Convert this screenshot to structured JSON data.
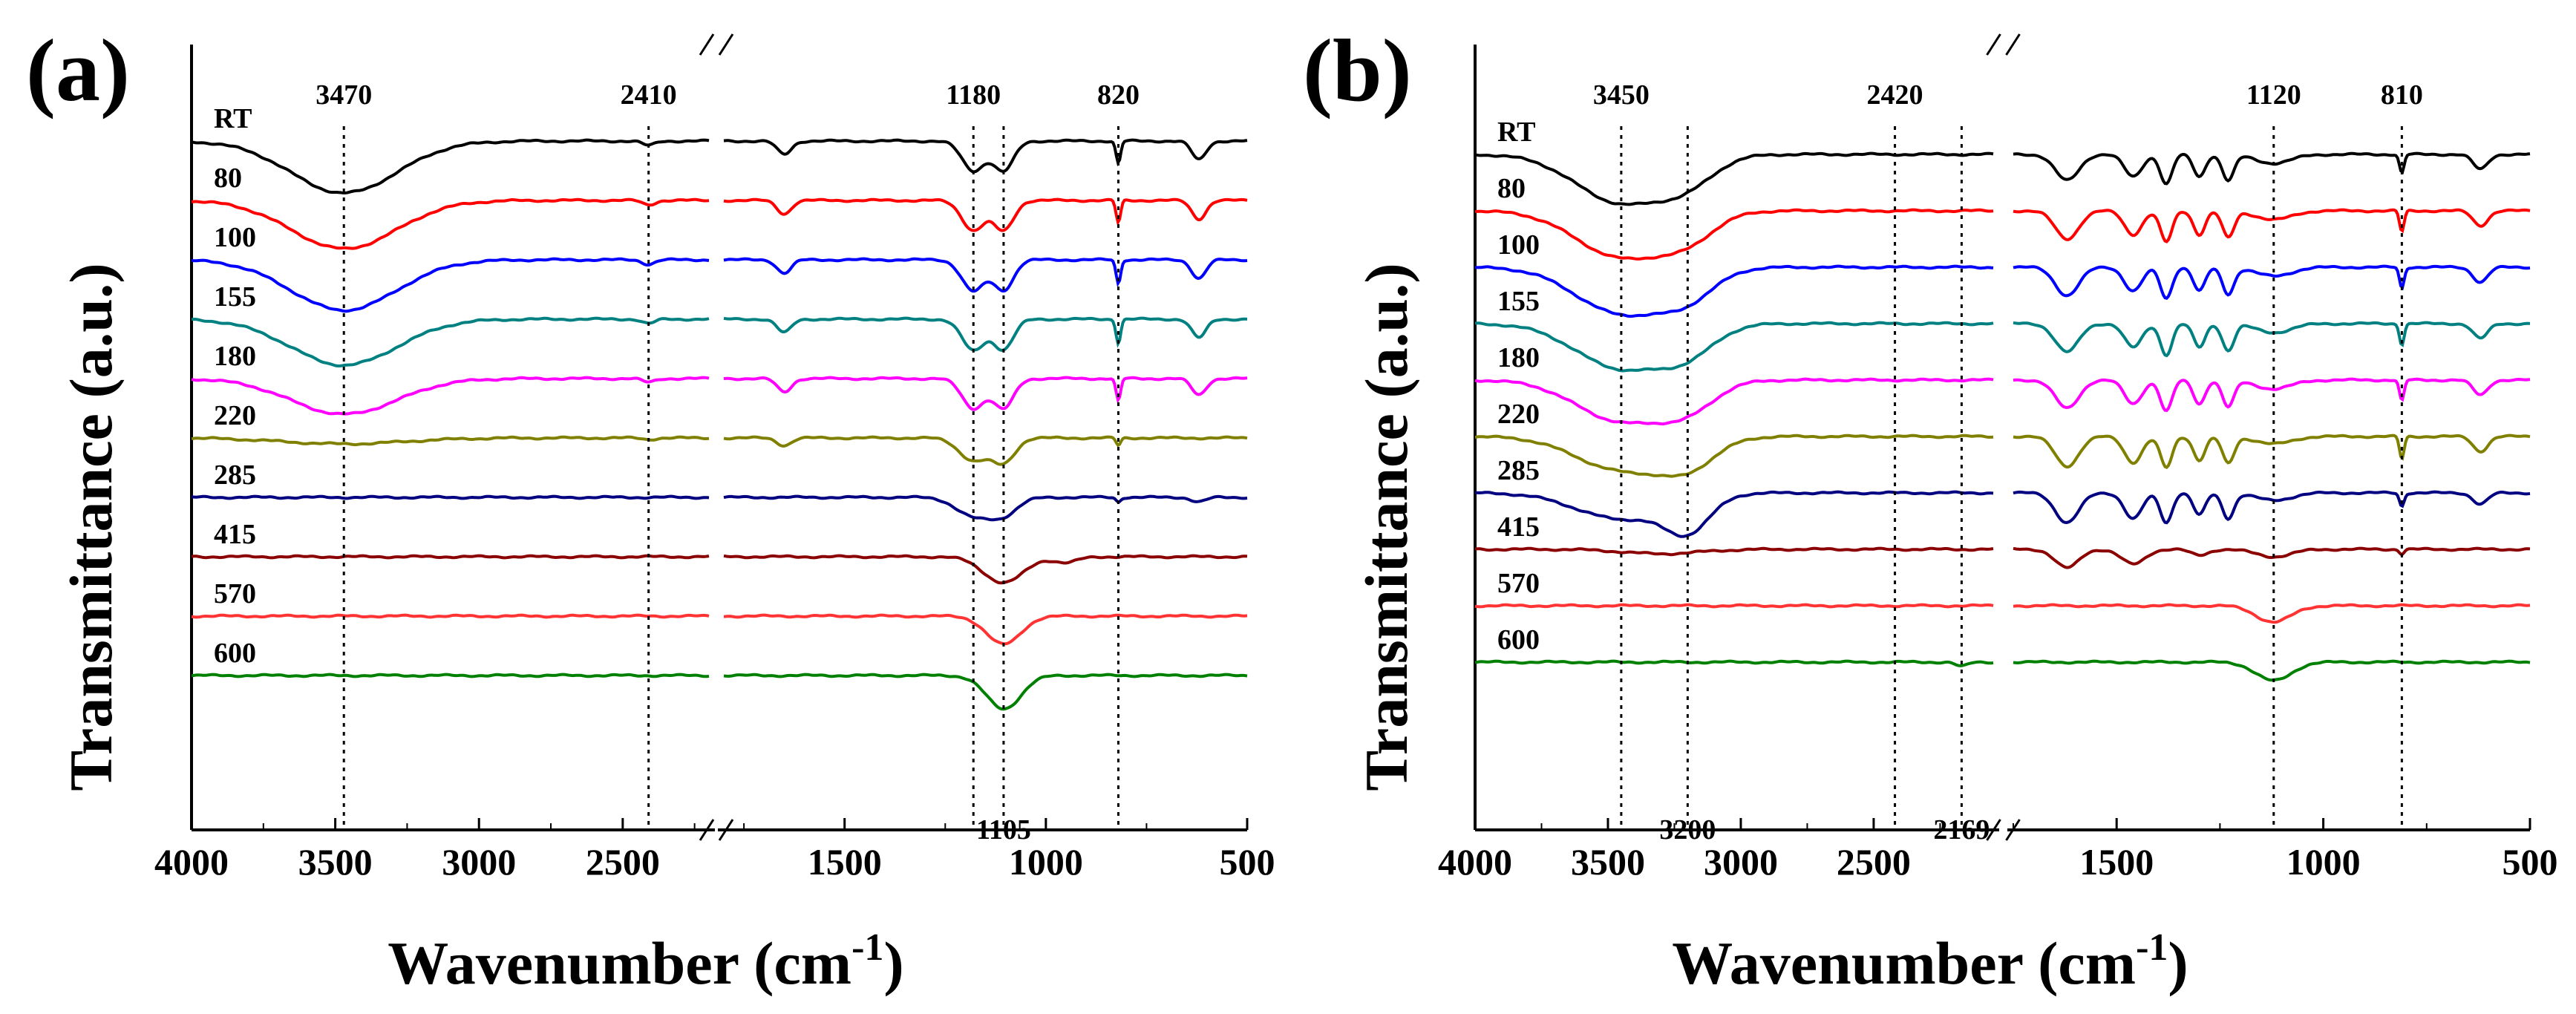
{
  "chart_data": [
    {
      "panel": "(a)",
      "type": "line",
      "ylabel": "Transmittance (a.u.)",
      "xlabel": "Wavenumber (cm",
      "xlabel_sup": "-1",
      "xlabel_close": ")",
      "x_ticks_left": [
        4000,
        3500,
        3000,
        2500
      ],
      "x_ticks_right": [
        1500,
        1000,
        500
      ],
      "x_range_left": [
        4000,
        2200
      ],
      "x_range_right": [
        1800,
        500
      ],
      "peaks": [
        {
          "wavenumber": 3470,
          "label": "3470",
          "position": "top"
        },
        {
          "wavenumber": 2410,
          "label": "2410",
          "position": "top"
        },
        {
          "wavenumber": 1180,
          "label": "1180",
          "position": "top"
        },
        {
          "wavenumber": 1105,
          "label": "1105",
          "position": "bottom"
        },
        {
          "wavenumber": 820,
          "label": "820",
          "position": "top"
        }
      ],
      "series": [
        {
          "name": "RT",
          "color": "#000000",
          "baseline": 0,
          "bands": [
            [
              3470,
              70,
              260
            ],
            [
              2410,
              6,
              30
            ],
            [
              1650,
              18,
              25
            ],
            [
              1180,
              40,
              40
            ],
            [
              1105,
              40,
              35
            ],
            [
              820,
              30,
              8
            ],
            [
              620,
              25,
              25
            ]
          ]
        },
        {
          "name": "80",
          "color": "#ff0000",
          "baseline": 1,
          "bands": [
            [
              3470,
              65,
              260
            ],
            [
              2410,
              6,
              30
            ],
            [
              1650,
              18,
              25
            ],
            [
              1180,
              40,
              40
            ],
            [
              1105,
              40,
              35
            ],
            [
              820,
              30,
              8
            ],
            [
              620,
              25,
              25
            ]
          ]
        },
        {
          "name": "100",
          "color": "#0000ff",
          "baseline": 2,
          "bands": [
            [
              3470,
              68,
              260
            ],
            [
              2410,
              6,
              30
            ],
            [
              1650,
              18,
              25
            ],
            [
              1180,
              42,
              40
            ],
            [
              1105,
              40,
              35
            ],
            [
              820,
              32,
              8
            ],
            [
              620,
              25,
              25
            ]
          ]
        },
        {
          "name": "155",
          "color": "#008080",
          "baseline": 3,
          "bands": [
            [
              3470,
              62,
              260
            ],
            [
              2410,
              6,
              30
            ],
            [
              1650,
              18,
              25
            ],
            [
              1180,
              42,
              40
            ],
            [
              1105,
              40,
              35
            ],
            [
              820,
              32,
              8
            ],
            [
              620,
              25,
              25
            ]
          ]
        },
        {
          "name": "180",
          "color": "#ff00ff",
          "baseline": 4,
          "bands": [
            [
              3470,
              48,
              260
            ],
            [
              2410,
              5,
              30
            ],
            [
              1650,
              18,
              25
            ],
            [
              1180,
              40,
              40
            ],
            [
              1105,
              40,
              35
            ],
            [
              820,
              30,
              8
            ],
            [
              620,
              22,
              25
            ]
          ]
        },
        {
          "name": "220",
          "color": "#808000",
          "baseline": 5,
          "bands": [
            [
              3470,
              8,
              300
            ],
            [
              2410,
              2,
              30
            ],
            [
              1650,
              10,
              25
            ],
            [
              1180,
              30,
              50
            ],
            [
              1105,
              32,
              40
            ],
            [
              820,
              10,
              8
            ]
          ]
        },
        {
          "name": "285",
          "color": "#000080",
          "baseline": 6,
          "bands": [
            [
              1180,
              25,
              60
            ],
            [
              1105,
              22,
              50
            ],
            [
              820,
              6,
              8
            ],
            [
              620,
              6,
              25
            ]
          ]
        },
        {
          "name": "415",
          "color": "#8b0000",
          "baseline": 7,
          "bands": [
            [
              1105,
              35,
              70
            ],
            [
              950,
              8,
              40
            ]
          ]
        },
        {
          "name": "570",
          "color": "#ff3333",
          "baseline": 8,
          "bands": [
            [
              1105,
              38,
              60
            ]
          ]
        },
        {
          "name": "600",
          "color": "#008000",
          "baseline": 9,
          "bands": [
            [
              1105,
              45,
              60
            ]
          ]
        }
      ]
    },
    {
      "panel": "(b)",
      "type": "line",
      "ylabel": "Transmittance (a.u.)",
      "xlabel": "Wavenumber (cm",
      "xlabel_sup": "-1",
      "xlabel_close": ")",
      "x_ticks_left": [
        4000,
        3500,
        3000,
        2500
      ],
      "x_ticks_right": [
        1500,
        1000,
        500
      ],
      "x_range_left": [
        4000,
        2050
      ],
      "x_range_right": [
        1750,
        500
      ],
      "peaks": [
        {
          "wavenumber": 3450,
          "label": "3450",
          "position": "top"
        },
        {
          "wavenumber": 3200,
          "label": "3200",
          "position": "bottom"
        },
        {
          "wavenumber": 2420,
          "label": "2420",
          "position": "top"
        },
        {
          "wavenumber": 2169,
          "label": "2169",
          "position": "bottom"
        },
        {
          "wavenumber": 1120,
          "label": "1120",
          "position": "top"
        },
        {
          "wavenumber": 810,
          "label": "810",
          "position": "top"
        }
      ],
      "series": [
        {
          "name": "RT",
          "color": "#000000",
          "baseline": 0,
          "bands": [
            [
              3450,
              65,
              240
            ],
            [
              3200,
              30,
              150
            ],
            [
              1620,
              35,
              40
            ],
            [
              1460,
              30,
              30
            ],
            [
              1380,
              40,
              20
            ],
            [
              1300,
              30,
              20
            ],
            [
              1230,
              35,
              20
            ],
            [
              1120,
              12,
              60
            ],
            [
              810,
              25,
              8
            ],
            [
              620,
              20,
              25
            ]
          ]
        },
        {
          "name": "80",
          "color": "#ff0000",
          "baseline": 1,
          "bands": [
            [
              3450,
              62,
              240
            ],
            [
              3200,
              30,
              150
            ],
            [
              1620,
              38,
              40
            ],
            [
              1460,
              32,
              30
            ],
            [
              1380,
              42,
              20
            ],
            [
              1300,
              32,
              20
            ],
            [
              1230,
              36,
              20
            ],
            [
              1120,
              12,
              60
            ],
            [
              810,
              28,
              8
            ],
            [
              620,
              20,
              25
            ]
          ]
        },
        {
          "name": "100",
          "color": "#0000ff",
          "baseline": 2,
          "bands": [
            [
              3450,
              62,
              240
            ],
            [
              3200,
              32,
              150
            ],
            [
              1620,
              38,
              40
            ],
            [
              1460,
              32,
              30
            ],
            [
              1380,
              42,
              20
            ],
            [
              1300,
              32,
              20
            ],
            [
              1230,
              36,
              20
            ],
            [
              1120,
              12,
              60
            ],
            [
              810,
              28,
              8
            ],
            [
              620,
              20,
              25
            ]
          ]
        },
        {
          "name": "155",
          "color": "#008080",
          "baseline": 3,
          "bands": [
            [
              3450,
              60,
              240
            ],
            [
              3200,
              32,
              150
            ],
            [
              1620,
              38,
              40
            ],
            [
              1460,
              32,
              30
            ],
            [
              1380,
              42,
              20
            ],
            [
              1300,
              32,
              20
            ],
            [
              1230,
              36,
              20
            ],
            [
              1120,
              12,
              60
            ],
            [
              810,
              28,
              8
            ],
            [
              620,
              20,
              25
            ]
          ]
        },
        {
          "name": "180",
          "color": "#ff00ff",
          "baseline": 4,
          "bands": [
            [
              3450,
              55,
              240
            ],
            [
              3200,
              32,
              150
            ],
            [
              1620,
              38,
              40
            ],
            [
              1460,
              32,
              30
            ],
            [
              1380,
              42,
              20
            ],
            [
              1300,
              32,
              20
            ],
            [
              1230,
              36,
              20
            ],
            [
              1120,
              12,
              60
            ],
            [
              810,
              28,
              8
            ],
            [
              620,
              20,
              25
            ]
          ]
        },
        {
          "name": "220",
          "color": "#808000",
          "baseline": 5,
          "bands": [
            [
              3450,
              45,
              240
            ],
            [
              3200,
              35,
              150
            ],
            [
              1620,
              40,
              40
            ],
            [
              1460,
              35,
              30
            ],
            [
              1380,
              42,
              20
            ],
            [
              1300,
              32,
              20
            ],
            [
              1230,
              36,
              20
            ],
            [
              1120,
              10,
              60
            ],
            [
              810,
              30,
              8
            ],
            [
              620,
              20,
              25
            ]
          ]
        },
        {
          "name": "285",
          "color": "#000080",
          "baseline": 6,
          "bands": [
            [
              3450,
              35,
              240
            ],
            [
              3200,
              45,
              120
            ],
            [
              1620,
              40,
              40
            ],
            [
              1460,
              35,
              30
            ],
            [
              1380,
              40,
              20
            ],
            [
              1300,
              30,
              20
            ],
            [
              1230,
              34,
              20
            ],
            [
              1120,
              10,
              60
            ],
            [
              810,
              18,
              8
            ],
            [
              620,
              15,
              25
            ]
          ]
        },
        {
          "name": "415",
          "color": "#8b0000",
          "baseline": 7,
          "bands": [
            [
              3300,
              6,
              200
            ],
            [
              1620,
              25,
              40
            ],
            [
              1460,
              20,
              40
            ],
            [
              1300,
              8,
              30
            ],
            [
              1120,
              10,
              60
            ],
            [
              810,
              6,
              8
            ]
          ]
        },
        {
          "name": "570",
          "color": "#ff3333",
          "baseline": 8,
          "bands": [
            [
              1120,
              22,
              60
            ]
          ]
        },
        {
          "name": "600",
          "color": "#008000",
          "baseline": 9,
          "bands": [
            [
              2169,
              6,
              30
            ],
            [
              1120,
              25,
              60
            ]
          ]
        }
      ]
    }
  ]
}
